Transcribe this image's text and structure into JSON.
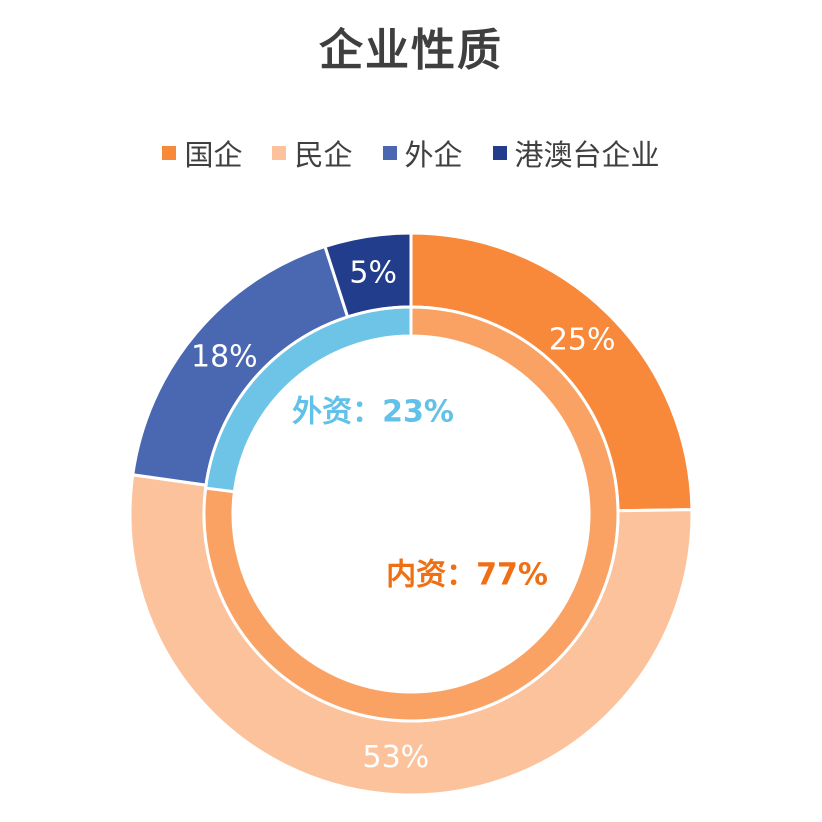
{
  "chart_data": {
    "type": "donut",
    "title": "企业性质",
    "legend_position": "top",
    "outer_ring": {
      "categories": [
        "国企",
        "民企",
        "外企",
        "港澳台企业"
      ],
      "values": [
        25,
        53,
        18,
        5
      ],
      "labels": [
        "25%",
        "53%",
        "18%",
        "5%"
      ],
      "colors": [
        "#f8893a",
        "#fbc29c",
        "#4a67b1",
        "#213d8c"
      ]
    },
    "inner_ring": {
      "categories": [
        "内资",
        "外资"
      ],
      "values": [
        77,
        23
      ],
      "labels": [
        "内资：77%",
        "外资：23%"
      ],
      "colors": [
        "#f9a264",
        "#6ec4e6"
      ],
      "label_colors": [
        "#ef6f14",
        "#62c1e8"
      ]
    }
  }
}
